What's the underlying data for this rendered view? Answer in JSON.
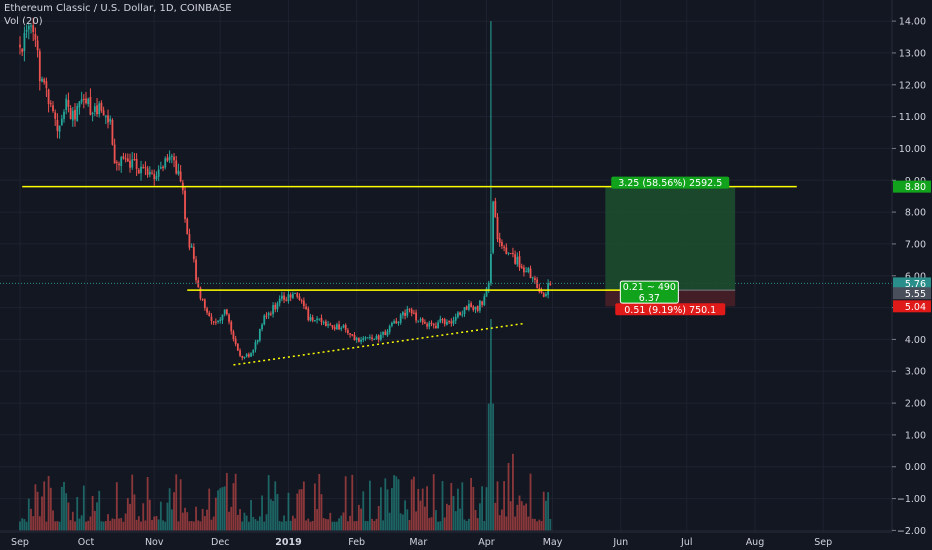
{
  "header": {
    "symbol_line": "Ethereum Classic / U.S. Dollar, 1D, COINBASE",
    "volume_label": "Vol (20)"
  },
  "chart_data": {
    "type": "candlestick",
    "x_ticks": [
      "Sep",
      "Oct",
      "Nov",
      "Dec",
      "2019",
      "Feb",
      "Mar",
      "Apr",
      "May",
      "Jun",
      "Jul",
      "Aug",
      "Sep"
    ],
    "y_ticks": [
      "14.00",
      "13.00",
      "12.00",
      "11.00",
      "10.00",
      "9.00",
      "8.00",
      "7.00",
      "6.00",
      "5.00",
      "4.00",
      "3.00",
      "2.00",
      "1.00",
      "0.00",
      "−1.00",
      "−2.00"
    ],
    "ylim": [
      -2.05,
      14.6
    ],
    "date_range": [
      "2018-09-01",
      "2019-09-20"
    ],
    "last_date": "2019-04-30",
    "anchors": [
      [
        "2018-09-01",
        13.2
      ],
      [
        "2018-09-05",
        13.8
      ],
      [
        "2018-09-08",
        13.6
      ],
      [
        "2018-09-10",
        12.2
      ],
      [
        "2018-09-14",
        11.6
      ],
      [
        "2018-09-18",
        10.6
      ],
      [
        "2018-09-22",
        11.4
      ],
      [
        "2018-09-26",
        11.0
      ],
      [
        "2018-09-30",
        11.5
      ],
      [
        "2018-10-05",
        11.1
      ],
      [
        "2018-10-09",
        11.3
      ],
      [
        "2018-10-12",
        10.8
      ],
      [
        "2018-10-14",
        9.6
      ],
      [
        "2018-10-20",
        9.5
      ],
      [
        "2018-10-28",
        9.4
      ],
      [
        "2018-11-02",
        9.0
      ],
      [
        "2018-11-06",
        9.6
      ],
      [
        "2018-11-09",
        9.7
      ],
      [
        "2018-11-12",
        9.2
      ],
      [
        "2018-11-14",
        8.6
      ],
      [
        "2018-11-16",
        7.2
      ],
      [
        "2018-11-18",
        6.9
      ],
      [
        "2018-11-20",
        5.9
      ],
      [
        "2018-11-22",
        5.3
      ],
      [
        "2018-11-25",
        4.8
      ],
      [
        "2018-11-29",
        4.5
      ],
      [
        "2018-12-03",
        4.9
      ],
      [
        "2018-12-07",
        4.1
      ],
      [
        "2018-12-10",
        3.5
      ],
      [
        "2018-12-14",
        3.5
      ],
      [
        "2018-12-18",
        4.0
      ],
      [
        "2018-12-21",
        4.7
      ],
      [
        "2018-12-25",
        5.0
      ],
      [
        "2018-12-28",
        5.2
      ],
      [
        "2019-01-02",
        5.4
      ],
      [
        "2019-01-06",
        5.3
      ],
      [
        "2019-01-10",
        4.7
      ],
      [
        "2019-01-14",
        4.6
      ],
      [
        "2019-01-20",
        4.4
      ],
      [
        "2019-01-25",
        4.4
      ],
      [
        "2019-01-31",
        4.0
      ],
      [
        "2019-02-03",
        3.9
      ],
      [
        "2019-02-07",
        4.1
      ],
      [
        "2019-02-11",
        4.0
      ],
      [
        "2019-02-16",
        4.4
      ],
      [
        "2019-02-20",
        4.6
      ],
      [
        "2019-02-24",
        4.9
      ],
      [
        "2019-02-28",
        4.7
      ],
      [
        "2019-03-04",
        4.5
      ],
      [
        "2019-03-08",
        4.4
      ],
      [
        "2019-03-12",
        4.6
      ],
      [
        "2019-03-16",
        4.5
      ],
      [
        "2019-03-20",
        4.8
      ],
      [
        "2019-03-24",
        5.1
      ],
      [
        "2019-03-28",
        5.0
      ],
      [
        "2019-03-31",
        5.3
      ],
      [
        "2019-04-02",
        5.8
      ],
      [
        "2019-04-03",
        6.6
      ],
      [
        "2019-04-04",
        8.2
      ],
      [
        "2019-04-06",
        7.3
      ],
      [
        "2019-04-09",
        6.9
      ],
      [
        "2019-04-12",
        6.6
      ],
      [
        "2019-04-16",
        6.4
      ],
      [
        "2019-04-20",
        6.1
      ],
      [
        "2019-04-24",
        5.7
      ],
      [
        "2019-04-27",
        5.4
      ],
      [
        "2019-04-30",
        5.76
      ]
    ],
    "spike": {
      "date": "2019-04-03",
      "high": 14.0
    },
    "resistance_line": {
      "y": 8.8,
      "x_range": [
        "2018-09-02",
        "2019-08-20"
      ]
    },
    "support_line": {
      "y": 5.55,
      "x_range": [
        "2018-11-16",
        "2019-06-20"
      ]
    },
    "trend_line": {
      "points": [
        [
          "2018-12-07",
          3.2
        ],
        [
          "2019-04-18",
          4.5
        ]
      ]
    },
    "last_price_line": 5.76,
    "position": {
      "x_range": [
        "2019-05-25",
        "2019-07-23"
      ],
      "entry": 5.55,
      "target": 8.8,
      "stop": 5.04,
      "target_label": "3.25 (58.56%) 2592.5",
      "stop_label": "0.51 (9.19%) 750.1",
      "entry_label_1": "0.21 ~ 490",
      "entry_label_2": "6.37"
    },
    "axis_tags": {
      "target": "8.80",
      "last": "5.76",
      "entry": "5.55",
      "stop": "5.04"
    },
    "volume": {
      "baseline": -2.0,
      "max_height": 3.3,
      "spike_height": 4.15
    },
    "colors": {
      "up": "#26a69a",
      "down": "#ef5350",
      "yellow": "#ffff00",
      "green_profit": "#1d4d2f",
      "red_loss": "#4a1f27",
      "green_tag": "#12a31d",
      "red_tag": "#e01919",
      "grey_tag": "#4a4f5c",
      "last_tag": "#2a8f8a",
      "background": "#131722",
      "axis_text": "#d1d4dc"
    }
  }
}
